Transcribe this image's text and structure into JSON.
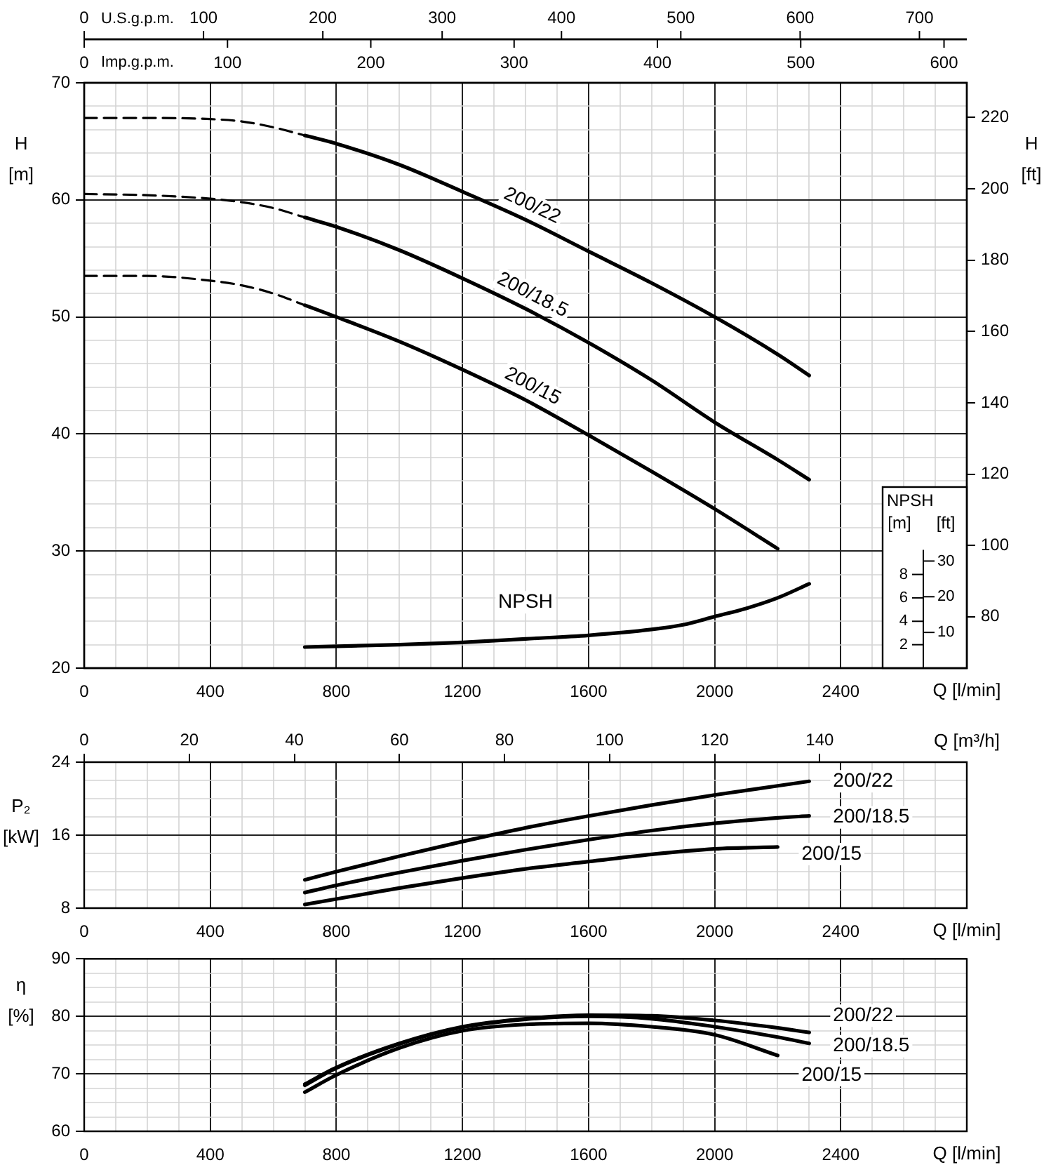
{
  "chart_data": [
    {
      "type": "line",
      "xlabel": "Q [l/min]",
      "ylabel": "H [m]",
      "y2label": "H [ft]",
      "x2label": "U.S.g.p.m.",
      "xlim": [
        0,
        2800
      ],
      "xticks": [
        0,
        {
          "value": 100,
          "label": null
        },
        {
          "value": 200,
          "label": null
        },
        {
          "value": 300,
          "label": null
        },
        400,
        {
          "value": 500,
          "label": null
        },
        {
          "value": 600,
          "label": null
        },
        {
          "value": 700,
          "label": null
        },
        800,
        {
          "value": 900,
          "label": null
        },
        {
          "value": 1000,
          "label": null
        },
        {
          "value": 1100,
          "label": null
        },
        1200,
        {
          "value": 1300,
          "label": null
        },
        {
          "value": 1400,
          "label": null
        },
        {
          "value": 1500,
          "label": null
        },
        1600,
        {
          "value": 1700,
          "label": null
        },
        {
          "value": 1800,
          "label": null
        },
        {
          "value": 1900,
          "label": null
        },
        2000,
        {
          "value": 2100,
          "label": null
        },
        {
          "value": 2200,
          "label": null
        },
        {
          "value": 2300,
          "label": null
        },
        2400,
        {
          "value": 2500,
          "label": null
        },
        {
          "value": 2600,
          "label": null
        },
        {
          "value": 2700,
          "label": null
        }
      ],
      "ylim": [
        20,
        70
      ],
      "yticks": [
        20,
        {
          "value": 22,
          "label": null
        },
        {
          "value": 24,
          "label": null
        },
        {
          "value": 26,
          "label": null
        },
        {
          "value": 28,
          "label": null
        },
        30,
        {
          "value": 32,
          "label": null
        },
        {
          "value": 34,
          "label": null
        },
        {
          "value": 36,
          "label": null
        },
        {
          "value": 38,
          "label": null
        },
        40,
        {
          "value": 42,
          "label": null
        },
        {
          "value": 44,
          "label": null
        },
        {
          "value": 46,
          "label": null
        },
        {
          "value": 48,
          "label": null
        },
        50,
        {
          "value": 52,
          "label": null
        },
        {
          "value": 54,
          "label": null
        },
        {
          "value": 56,
          "label": null
        },
        {
          "value": 58,
          "label": null
        },
        60,
        {
          "value": 62,
          "label": null
        },
        {
          "value": 64,
          "label": null
        },
        {
          "value": 66,
          "label": null
        },
        {
          "value": 68,
          "label": null
        },
        70
      ],
      "y2lim": [
        65.6,
        229.7
      ],
      "y2ticks": [
        80,
        100,
        120,
        140,
        160,
        180,
        200,
        220
      ],
      "x2lim": [
        0,
        739.7
      ],
      "x2ticks": [
        0,
        100,
        200,
        300,
        400,
        500,
        600,
        700
      ],
      "grid": true,
      "series": [
        {
          "color": "#000000",
          "line_style": "dashed",
          "x": [
            0,
            200,
            400,
            500,
            600,
            700
          ],
          "values": [
            67.0,
            67.0,
            66.9,
            66.7,
            66.2,
            65.5
          ]
        },
        {
          "name": "200/22",
          "color": "#000000",
          "x": [
            700,
            800,
            1000,
            1200,
            1400,
            1600,
            1800,
            2000,
            2200,
            2300
          ],
          "values": [
            65.5,
            64.8,
            63.0,
            60.7,
            58.3,
            55.6,
            52.9,
            50.0,
            46.8,
            45.0
          ]
        },
        {
          "color": "#000000",
          "line_style": "dashed",
          "x": [
            0,
            200,
            400,
            500,
            600,
            700
          ],
          "values": [
            60.5,
            60.4,
            60.1,
            59.8,
            59.3,
            58.5
          ]
        },
        {
          "name": "200/18.5",
          "color": "#000000",
          "x": [
            700,
            800,
            1000,
            1200,
            1400,
            1600,
            1800,
            2000,
            2200,
            2300
          ],
          "values": [
            58.5,
            57.7,
            55.7,
            53.3,
            50.7,
            47.8,
            44.6,
            41.0,
            37.8,
            36.1
          ]
        },
        {
          "color": "#000000",
          "line_style": "dashed",
          "x": [
            0,
            200,
            400,
            500,
            600,
            700
          ],
          "values": [
            53.5,
            53.5,
            53.1,
            52.7,
            52.0,
            51.0
          ]
        },
        {
          "name": "200/15",
          "color": "#000000",
          "x": [
            700,
            800,
            1000,
            1200,
            1400,
            1600,
            1800,
            2000,
            2200
          ],
          "values": [
            51.0,
            50.0,
            47.9,
            45.5,
            42.9,
            39.9,
            36.8,
            33.6,
            30.2
          ]
        }
      ]
    },
    {
      "type": "line",
      "ylabel": "NPSH [m]",
      "y2label": "[ft]",
      "x2label": "Imp.g.p.m.",
      "tick_labels": "y",
      "xlim": [
        0,
        2800
      ],
      "ylim": [
        0,
        50
      ],
      "yticks": [
        2,
        4,
        6,
        8
      ],
      "y2lim": [
        0,
        164
      ],
      "y2ticks": [
        10,
        20,
        30
      ],
      "x2lim": [
        0,
        615.9
      ],
      "x2ticks": [
        0,
        100,
        200,
        300,
        400,
        500,
        600
      ],
      "series": [
        {
          "name": "NPSH",
          "color": "#000000",
          "x": [
            700,
            1000,
            1200,
            1400,
            1600,
            1800,
            1900,
            2000,
            2100,
            2200,
            2300
          ],
          "values": [
            1.8,
            2.0,
            2.2,
            2.5,
            2.8,
            3.3,
            3.7,
            4.4,
            5.1,
            6.0,
            7.2
          ]
        }
      ]
    },
    {
      "type": "line",
      "xlabel": "Q [l/min]",
      "ylabel": "P₂ [kW]",
      "x2label": "Q [m³/h]",
      "xlim": [
        0,
        2800
      ],
      "xticks": [
        0,
        {
          "value": 100,
          "label": null
        },
        {
          "value": 200,
          "label": null
        },
        {
          "value": 300,
          "label": null
        },
        400,
        {
          "value": 500,
          "label": null
        },
        {
          "value": 600,
          "label": null
        },
        {
          "value": 700,
          "label": null
        },
        800,
        {
          "value": 900,
          "label": null
        },
        {
          "value": 1000,
          "label": null
        },
        {
          "value": 1100,
          "label": null
        },
        1200,
        {
          "value": 1300,
          "label": null
        },
        {
          "value": 1400,
          "label": null
        },
        {
          "value": 1500,
          "label": null
        },
        1600,
        {
          "value": 1700,
          "label": null
        },
        {
          "value": 1800,
          "label": null
        },
        {
          "value": 1900,
          "label": null
        },
        2000,
        {
          "value": 2100,
          "label": null
        },
        {
          "value": 2200,
          "label": null
        },
        {
          "value": 2300,
          "label": null
        },
        2400,
        {
          "value": 2500,
          "label": null
        },
        {
          "value": 2600,
          "label": null
        },
        {
          "value": 2700,
          "label": null
        }
      ],
      "ylim": [
        8,
        24
      ],
      "yticks": [
        8,
        {
          "value": 10,
          "label": null
        },
        {
          "value": 12,
          "label": null
        },
        {
          "value": 14,
          "label": null
        },
        16,
        {
          "value": 18,
          "label": null
        },
        {
          "value": 20,
          "label": null
        },
        {
          "value": 22,
          "label": null
        },
        24
      ],
      "x2lim": [
        0,
        168
      ],
      "x2ticks": [
        0,
        20,
        40,
        60,
        80,
        100,
        120,
        140
      ],
      "grid": true,
      "series": [
        {
          "name": "200/22",
          "color": "#000000",
          "x": [
            700,
            800,
            1000,
            1200,
            1400,
            1600,
            1800,
            2000,
            2200,
            2300
          ],
          "values": [
            11.1,
            12.0,
            13.7,
            15.3,
            16.8,
            18.1,
            19.3,
            20.4,
            21.4,
            21.9
          ]
        },
        {
          "name": "200/18.5",
          "color": "#000000",
          "x": [
            700,
            800,
            1000,
            1200,
            1400,
            1600,
            1800,
            2000,
            2200,
            2300
          ],
          "values": [
            9.7,
            10.5,
            11.9,
            13.2,
            14.4,
            15.5,
            16.5,
            17.3,
            17.9,
            18.1
          ]
        },
        {
          "name": "200/15",
          "color": "#000000",
          "x": [
            700,
            800,
            1000,
            1200,
            1400,
            1600,
            1800,
            2000,
            2200
          ],
          "values": [
            8.4,
            9.0,
            10.2,
            11.3,
            12.3,
            13.1,
            13.9,
            14.5,
            14.7
          ]
        }
      ]
    },
    {
      "type": "line",
      "xlabel": "Q [l/min]",
      "ylabel": "η [%]",
      "xlim": [
        0,
        2800
      ],
      "xticks": [
        0,
        {
          "value": 100,
          "label": null
        },
        {
          "value": 200,
          "label": null
        },
        {
          "value": 300,
          "label": null
        },
        400,
        {
          "value": 500,
          "label": null
        },
        {
          "value": 600,
          "label": null
        },
        {
          "value": 700,
          "label": null
        },
        800,
        {
          "value": 900,
          "label": null
        },
        {
          "value": 1000,
          "label": null
        },
        {
          "value": 1100,
          "label": null
        },
        1200,
        {
          "value": 1300,
          "label": null
        },
        {
          "value": 1400,
          "label": null
        },
        {
          "value": 1500,
          "label": null
        },
        1600,
        {
          "value": 1700,
          "label": null
        },
        {
          "value": 1800,
          "label": null
        },
        {
          "value": 1900,
          "label": null
        },
        2000,
        {
          "value": 2100,
          "label": null
        },
        {
          "value": 2200,
          "label": null
        },
        {
          "value": 2300,
          "label": null
        },
        2400,
        {
          "value": 2500,
          "label": null
        },
        {
          "value": 2600,
          "label": null
        },
        {
          "value": 2700,
          "label": null
        }
      ],
      "ylim": [
        60,
        90
      ],
      "yticks": [
        60,
        {
          "value": 62.5,
          "label": null
        },
        {
          "value": 65,
          "label": null
        },
        {
          "value": 67.5,
          "label": null
        },
        70,
        {
          "value": 72.5,
          "label": null
        },
        {
          "value": 75,
          "label": null
        },
        {
          "value": 77.5,
          "label": null
        },
        80,
        {
          "value": 82.5,
          "label": null
        },
        {
          "value": 85,
          "label": null
        },
        {
          "value": 87.5,
          "label": null
        },
        90
      ],
      "grid": true,
      "series": [
        {
          "name": "200/22",
          "color": "#000000",
          "x": [
            700,
            800,
            1000,
            1200,
            1400,
            1600,
            1800,
            2000,
            2200,
            2300
          ],
          "values": [
            68.2,
            71.1,
            75.3,
            78.2,
            79.6,
            80.2,
            80.1,
            79.3,
            78.0,
            77.2
          ]
        },
        {
          "name": "200/18.5",
          "color": "#000000",
          "x": [
            700,
            800,
            1000,
            1200,
            1400,
            1600,
            1800,
            2000,
            2200,
            2300
          ],
          "values": [
            68.0,
            71.0,
            75.2,
            78.1,
            79.5,
            80.0,
            79.6,
            78.2,
            76.4,
            75.3
          ]
        },
        {
          "name": "200/15",
          "color": "#000000",
          "x": [
            700,
            800,
            1000,
            1200,
            1400,
            1600,
            1800,
            2000,
            2200
          ],
          "values": [
            66.8,
            69.8,
            74.5,
            77.5,
            78.6,
            78.8,
            78.2,
            76.8,
            73.2
          ]
        }
      ]
    }
  ]
}
